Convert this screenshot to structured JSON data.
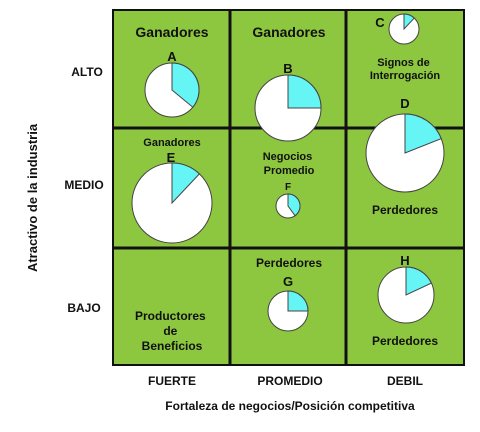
{
  "axes": {
    "y_title": "Atractivo de la industria",
    "x_title": "Fortaleza de negocios/Posición competitiva",
    "rows": [
      "ALTO",
      "MEDIO",
      "BAJO"
    ],
    "cols": [
      "FUERTE",
      "PROMEDIO",
      "DEBIL"
    ]
  },
  "colors": {
    "cell_fill": "#8DC63F",
    "grid_line": "#111111",
    "pie_share": "#66F5F5",
    "pie_rest": "#FFFFFF"
  },
  "cells": [
    {
      "row": 0,
      "col": 0,
      "text": [
        "Ganadores"
      ]
    },
    {
      "row": 0,
      "col": 1,
      "text": [
        "Ganadores"
      ]
    },
    {
      "row": 0,
      "col": 2,
      "text": [
        "Signos de",
        "Interrogación"
      ]
    },
    {
      "row": 1,
      "col": 0,
      "text": [
        "Ganadores"
      ]
    },
    {
      "row": 1,
      "col": 1,
      "text": [
        "Negocios",
        "Promedio"
      ]
    },
    {
      "row": 1,
      "col": 2,
      "text": [
        "Perdedores"
      ]
    },
    {
      "row": 2,
      "col": 0,
      "text": [
        "Productores",
        "de",
        "Beneficios"
      ]
    },
    {
      "row": 2,
      "col": 1,
      "text": [
        "Perdedores"
      ]
    },
    {
      "row": 2,
      "col": 2,
      "text": [
        "Perdedores"
      ]
    }
  ],
  "pies": [
    {
      "label": "A",
      "share": 0.36,
      "size": "medium"
    },
    {
      "label": "B",
      "share": 0.25,
      "size": "large"
    },
    {
      "label": "C",
      "share": 0.12,
      "size": "small"
    },
    {
      "label": "D",
      "share": 0.19,
      "size": "xlarge"
    },
    {
      "label": "E",
      "share": 0.12,
      "size": "xlarge"
    },
    {
      "label": "F",
      "share": 0.4,
      "size": "tiny"
    },
    {
      "label": "G",
      "share": 0.25,
      "size": "small"
    },
    {
      "label": "H",
      "share": 0.18,
      "size": "medium"
    }
  ]
}
